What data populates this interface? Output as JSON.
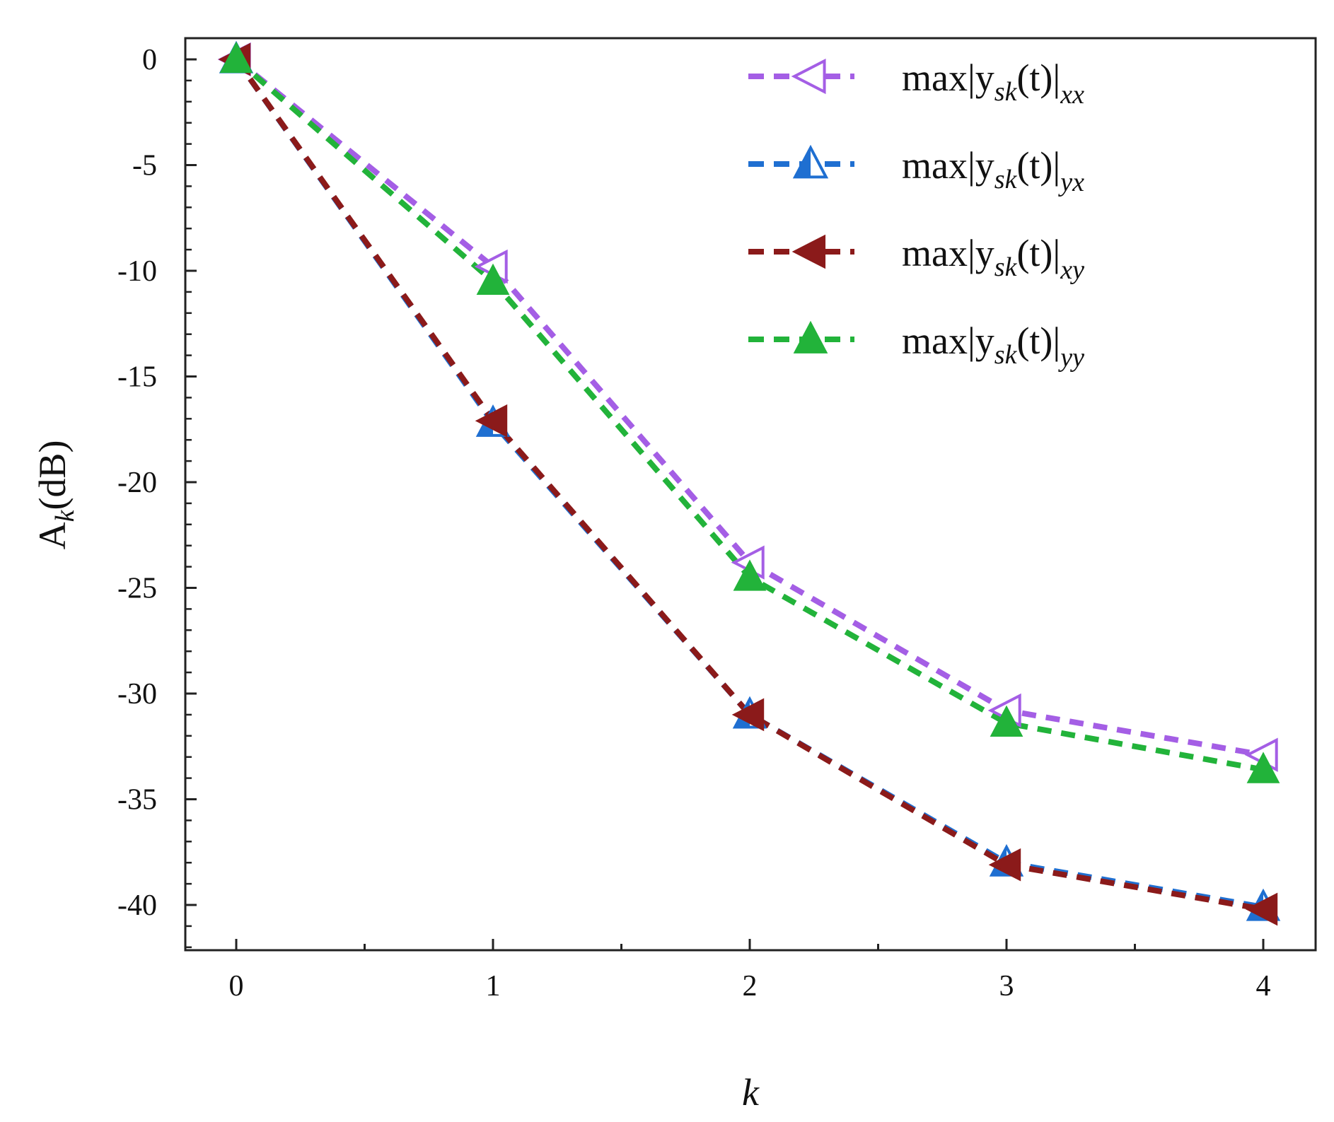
{
  "chart_data": {
    "type": "line",
    "title": "",
    "xlabel": "k",
    "ylabel": "A",
    "ylabel_sub": "k",
    "ylabel_unit": "(dB)",
    "xlim": [
      -0.2,
      4.2
    ],
    "ylim": [
      -42,
      1
    ],
    "xticks": [
      0,
      1,
      2,
      3,
      4
    ],
    "xtick_labels": [
      "0",
      "1",
      "2",
      "3",
      "4"
    ],
    "yticks": [
      0,
      -5,
      -10,
      -15,
      -20,
      -25,
      -30,
      -35,
      -40
    ],
    "ytick_labels": [
      "0",
      "-5",
      "-10",
      "-15",
      "-20",
      "-25",
      "-30",
      "-35",
      "-40"
    ],
    "grid": false,
    "legend_position": "top-right",
    "x": [
      0,
      1,
      2,
      3,
      4
    ],
    "series": [
      {
        "name": "max|y_sk(t)|_xx",
        "prefix": "max|y",
        "sub1": "sk",
        "mid": "(t)|",
        "sub2": "xx",
        "values": [
          0,
          -9.8,
          -23.8,
          -30.8,
          -32.9
        ],
        "color": "#a45ee5",
        "marker": "triangle-left",
        "filled": false
      },
      {
        "name": "max|y_sk(t)|_yx",
        "prefix": "max|y",
        "sub1": "sk",
        "mid": "(t)|",
        "sub2": "yx",
        "values": [
          0,
          -17.2,
          -31.0,
          -38.0,
          -40.1
        ],
        "color": "#1f6fd1",
        "marker": "triangle-up",
        "filled": "half"
      },
      {
        "name": "max|y_sk(t)|_xy",
        "prefix": "max|y",
        "sub1": "sk",
        "mid": "(t)|",
        "sub2": "xy",
        "values": [
          0,
          -17.1,
          -31.0,
          -38.1,
          -40.2
        ],
        "color": "#8b1a1a",
        "marker": "triangle-left",
        "filled": true
      },
      {
        "name": "max|y_sk(t)|_yy",
        "prefix": "max|y",
        "sub1": "sk",
        "mid": "(t)|",
        "sub2": "yy",
        "values": [
          0,
          -10.5,
          -24.5,
          -31.4,
          -33.6
        ],
        "color": "#22b33a",
        "marker": "triangle-up",
        "filled": true
      }
    ]
  }
}
